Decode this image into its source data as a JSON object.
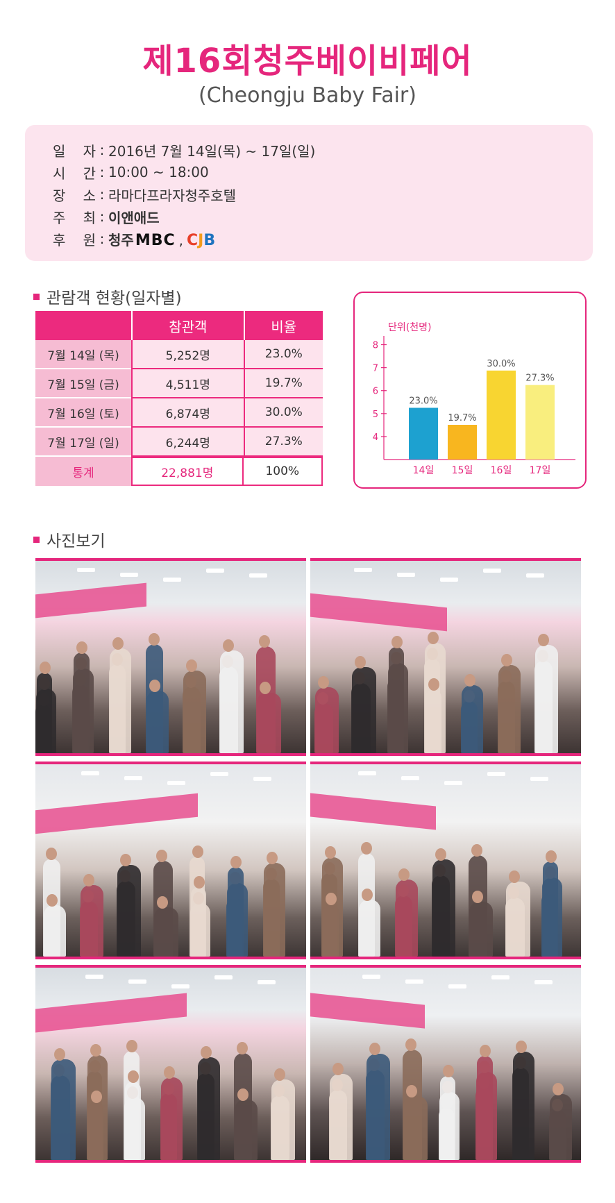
{
  "header": {
    "title": "제16회청주베이비페어",
    "subtitle": "(Cheongju Baby Fair)"
  },
  "info": {
    "rows": [
      {
        "key_a": "일",
        "key_b": "자",
        "value": "2016년 7월 14일(목) ~ 17일(일)"
      },
      {
        "key_a": "시",
        "key_b": "간",
        "value": "10:00 ~ 18:00"
      },
      {
        "key_a": "장",
        "key_b": "소",
        "value": "라마다프라자청주호텔"
      },
      {
        "key_a": "주",
        "key_b": "최",
        "value": "이앤애드"
      },
      {
        "key_a": "후",
        "key_b": "원",
        "value": "청주"
      }
    ],
    "sponsor_logos": {
      "mbc": "MBC",
      "separator": ",",
      "cjb_c": "C",
      "cjb_j": "J",
      "cjb_b": "B"
    }
  },
  "attendance": {
    "section_title": "관람객 현황(일자별)",
    "headers": [
      "",
      "참관객",
      "비율"
    ],
    "rows": [
      {
        "day": "7월 14일 (목)",
        "visitors": "5,252명",
        "ratio": "23.0%"
      },
      {
        "day": "7월 15일 (금)",
        "visitors": "4,511명",
        "ratio": "19.7%"
      },
      {
        "day": "7월 16일 (토)",
        "visitors": "6,874명",
        "ratio": "30.0%"
      },
      {
        "day": "7월 17일 (일)",
        "visitors": "6,244명",
        "ratio": "27.3%"
      }
    ],
    "total": {
      "label": "통계",
      "visitors": "22,881명",
      "ratio": "100%"
    }
  },
  "chart_data": {
    "type": "bar",
    "ylabel": "단위(천명)",
    "categories": [
      "14일",
      "15일",
      "16일",
      "17일"
    ],
    "values": [
      5.252,
      4.511,
      6.874,
      6.244
    ],
    "data_labels": [
      "23.0%",
      "19.7%",
      "30.0%",
      "27.3%"
    ],
    "colors": [
      "#1da1d0",
      "#f8b61f",
      "#f8d531",
      "#f9ee7e"
    ],
    "yticks": [
      4,
      5,
      6,
      7,
      8
    ],
    "ylim": [
      3,
      8.5
    ],
    "grid": false
  },
  "photos": {
    "section_title": "사진보기",
    "items": [
      {
        "name": "photo-hall-1",
        "scene": "mall"
      },
      {
        "name": "photo-hall-2",
        "scene": "mall"
      },
      {
        "name": "photo-booth-sorbebe",
        "scene": "booth"
      },
      {
        "name": "photo-booth-stalls",
        "scene": "booth"
      },
      {
        "name": "photo-grosmimi",
        "scene": "mall"
      },
      {
        "name": "photo-crowd",
        "scene": "crowd"
      }
    ]
  },
  "colors": {
    "accent": "#e5267c",
    "info_bg": "#fce4ee",
    "table_header": "#ec2a7e"
  }
}
